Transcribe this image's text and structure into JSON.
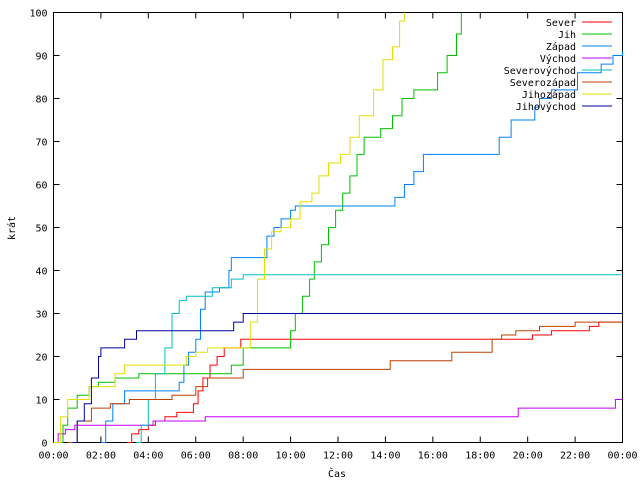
{
  "chart_data": {
    "type": "line",
    "title": "",
    "xlabel": "Čas",
    "ylabel": "krát",
    "xlim": [
      0,
      24
    ],
    "ylim": [
      0,
      100
    ],
    "grid": false,
    "legend_position": "top-right",
    "x_ticks": [
      {
        "value": 0,
        "label": "00:00"
      },
      {
        "value": 2,
        "label": "02:00"
      },
      {
        "value": 4,
        "label": "04:00"
      },
      {
        "value": 6,
        "label": "06:00"
      },
      {
        "value": 8,
        "label": "08:00"
      },
      {
        "value": 10,
        "label": "10:00"
      },
      {
        "value": 12,
        "label": "12:00"
      },
      {
        "value": 14,
        "label": "14:00"
      },
      {
        "value": 16,
        "label": "16:00"
      },
      {
        "value": 18,
        "label": "18:00"
      },
      {
        "value": 20,
        "label": "20:00"
      },
      {
        "value": 22,
        "label": "22:00"
      },
      {
        "value": 24,
        "label": "00:00"
      }
    ],
    "y_ticks": [
      0,
      10,
      20,
      30,
      40,
      50,
      60,
      70,
      80,
      90,
      100
    ],
    "series": [
      {
        "name": "Sever",
        "color": "#ff0000",
        "points": [
          [
            3.1,
            0
          ],
          [
            3.3,
            2
          ],
          [
            3.6,
            3
          ],
          [
            4.0,
            4
          ],
          [
            4.3,
            5
          ],
          [
            4.7,
            6
          ],
          [
            5.2,
            7
          ],
          [
            5.9,
            9
          ],
          [
            6.1,
            12
          ],
          [
            6.3,
            15
          ],
          [
            6.6,
            18
          ],
          [
            6.9,
            20
          ],
          [
            7.2,
            22
          ],
          [
            7.9,
            24
          ],
          [
            10.0,
            24
          ],
          [
            19.8,
            24
          ],
          [
            20.2,
            25
          ],
          [
            21.0,
            26
          ],
          [
            22.6,
            27
          ],
          [
            23.0,
            28
          ],
          [
            24.0,
            28
          ]
        ]
      },
      {
        "name": "Jih",
        "color": "#00c000",
        "points": [
          [
            0.2,
            0
          ],
          [
            0.4,
            4
          ],
          [
            0.6,
            8
          ],
          [
            1.0,
            11
          ],
          [
            1.5,
            13
          ],
          [
            1.9,
            14
          ],
          [
            2.6,
            15
          ],
          [
            3.6,
            16
          ],
          [
            7.0,
            16
          ],
          [
            7.5,
            18
          ],
          [
            8.0,
            22
          ],
          [
            9.8,
            22
          ],
          [
            10.0,
            26
          ],
          [
            10.2,
            30
          ],
          [
            10.5,
            34
          ],
          [
            10.8,
            38
          ],
          [
            11.0,
            42
          ],
          [
            11.3,
            46
          ],
          [
            11.6,
            50
          ],
          [
            11.9,
            54
          ],
          [
            12.2,
            58
          ],
          [
            12.5,
            62
          ],
          [
            12.8,
            67
          ],
          [
            13.1,
            71
          ],
          [
            13.8,
            73
          ],
          [
            14.3,
            76
          ],
          [
            14.7,
            80
          ],
          [
            15.2,
            82
          ],
          [
            16.0,
            82
          ],
          [
            16.2,
            86
          ],
          [
            16.6,
            90
          ],
          [
            17.0,
            95
          ],
          [
            17.2,
            100
          ]
        ]
      },
      {
        "name": "Západ",
        "color": "#0080ff",
        "points": [
          [
            2.0,
            0
          ],
          [
            2.2,
            5
          ],
          [
            2.5,
            9
          ],
          [
            3.0,
            12
          ],
          [
            5.0,
            12
          ],
          [
            5.3,
            14
          ],
          [
            5.5,
            18
          ],
          [
            5.7,
            21
          ],
          [
            6.0,
            24
          ],
          [
            6.2,
            31
          ],
          [
            6.4,
            35
          ],
          [
            7.0,
            36
          ],
          [
            7.4,
            40
          ],
          [
            7.5,
            43
          ],
          [
            8.9,
            43
          ],
          [
            9.0,
            48
          ],
          [
            9.3,
            50
          ],
          [
            9.6,
            52
          ],
          [
            10.0,
            54
          ],
          [
            10.2,
            55
          ],
          [
            13.9,
            55
          ],
          [
            14.4,
            57
          ],
          [
            14.8,
            60
          ],
          [
            15.2,
            63
          ],
          [
            15.6,
            67
          ],
          [
            18.5,
            67
          ],
          [
            18.8,
            71
          ],
          [
            19.3,
            75
          ],
          [
            20.0,
            75
          ],
          [
            20.3,
            78
          ],
          [
            20.5,
            80
          ],
          [
            21.0,
            82
          ],
          [
            22.1,
            86
          ],
          [
            23.1,
            88
          ],
          [
            23.6,
            90
          ],
          [
            24.0,
            91
          ]
        ]
      },
      {
        "name": "Východ",
        "color": "#c000ff",
        "points": [
          [
            0.0,
            0
          ],
          [
            0.2,
            2
          ],
          [
            0.5,
            3
          ],
          [
            0.9,
            4
          ],
          [
            3.6,
            4
          ],
          [
            4.2,
            5
          ],
          [
            5.7,
            5
          ],
          [
            6.4,
            6
          ],
          [
            19.4,
            6
          ],
          [
            19.6,
            8
          ],
          [
            23.5,
            8
          ],
          [
            23.7,
            10
          ],
          [
            24.0,
            10
          ]
        ]
      },
      {
        "name": "Severovýchod",
        "color": "#00c0c0",
        "points": [
          [
            3.5,
            0
          ],
          [
            3.7,
            4
          ],
          [
            4.0,
            10
          ],
          [
            4.3,
            16
          ],
          [
            4.7,
            22
          ],
          [
            5.0,
            30
          ],
          [
            5.3,
            33
          ],
          [
            5.6,
            34
          ],
          [
            6.4,
            34
          ],
          [
            6.7,
            36
          ],
          [
            7.5,
            38
          ],
          [
            8.0,
            39
          ],
          [
            24.0,
            39
          ]
        ]
      },
      {
        "name": "Severozápad",
        "color": "#c04000",
        "points": [
          [
            0.6,
            0
          ],
          [
            1.0,
            5
          ],
          [
            1.6,
            8
          ],
          [
            2.4,
            9
          ],
          [
            3.2,
            10
          ],
          [
            5.0,
            11
          ],
          [
            6.0,
            13
          ],
          [
            6.5,
            15
          ],
          [
            7.7,
            15
          ],
          [
            8.0,
            17
          ],
          [
            14.0,
            17
          ],
          [
            14.2,
            19
          ],
          [
            16.5,
            19
          ],
          [
            16.8,
            21
          ],
          [
            18.3,
            21
          ],
          [
            18.5,
            24
          ],
          [
            18.9,
            25
          ],
          [
            19.5,
            26
          ],
          [
            20.5,
            27
          ],
          [
            22.0,
            28
          ],
          [
            24.0,
            28
          ]
        ]
      },
      {
        "name": "Jihozápad",
        "color": "#e0e000",
        "points": [
          [
            0.0,
            0
          ],
          [
            0.3,
            6
          ],
          [
            0.6,
            10
          ],
          [
            1.2,
            10
          ],
          [
            1.5,
            13
          ],
          [
            2.6,
            16
          ],
          [
            3.0,
            18
          ],
          [
            5.2,
            18
          ],
          [
            5.6,
            20
          ],
          [
            6.0,
            21
          ],
          [
            6.5,
            22
          ],
          [
            8.1,
            22
          ],
          [
            8.3,
            28
          ],
          [
            8.6,
            38
          ],
          [
            8.9,
            45
          ],
          [
            9.2,
            49
          ],
          [
            9.6,
            50
          ],
          [
            10.0,
            52
          ],
          [
            10.4,
            56
          ],
          [
            10.9,
            58
          ],
          [
            11.2,
            62
          ],
          [
            11.6,
            65
          ],
          [
            12.1,
            67
          ],
          [
            12.5,
            71
          ],
          [
            12.9,
            76
          ],
          [
            13.5,
            82
          ],
          [
            13.9,
            89
          ],
          [
            14.3,
            92
          ],
          [
            14.6,
            98
          ],
          [
            14.8,
            100
          ]
        ]
      },
      {
        "name": "Jihovýchod",
        "color": "#0000a0",
        "points": [
          [
            0.8,
            0
          ],
          [
            1.0,
            5
          ],
          [
            1.3,
            9
          ],
          [
            1.6,
            15
          ],
          [
            1.9,
            20
          ],
          [
            2.0,
            22
          ],
          [
            2.9,
            22
          ],
          [
            3.0,
            24
          ],
          [
            3.5,
            26
          ],
          [
            7.3,
            26
          ],
          [
            7.6,
            28
          ],
          [
            8.0,
            30
          ],
          [
            24.0,
            30
          ]
        ]
      }
    ]
  }
}
